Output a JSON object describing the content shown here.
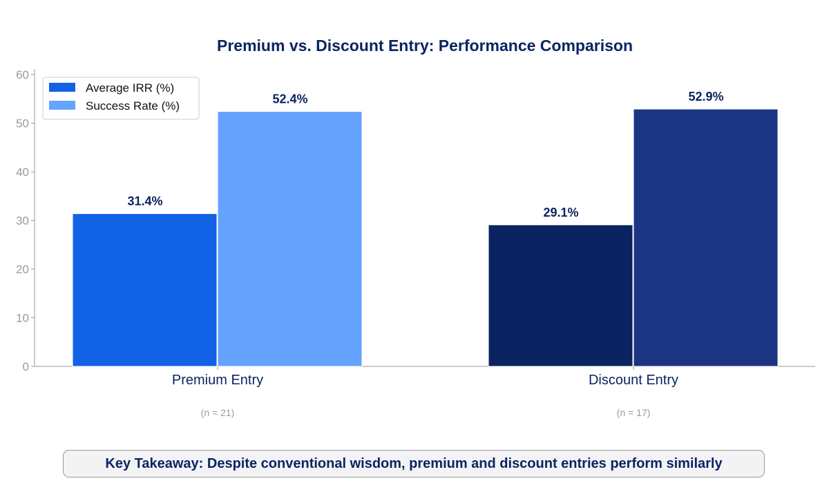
{
  "chart_data": {
    "type": "bar",
    "title": "Premium vs. Discount Entry: Performance Comparison",
    "categories": [
      "Premium Entry",
      "Discount Entry"
    ],
    "category_notes": [
      "(n = 21)",
      "(n = 17)"
    ],
    "series": [
      {
        "name": "Average IRR (%)",
        "values": [
          31.4,
          29.1
        ],
        "labels": [
          "31.4%",
          "29.1%"
        ]
      },
      {
        "name": "Success Rate (%)",
        "values": [
          52.4,
          52.9
        ],
        "labels": [
          "52.4%",
          "52.9%"
        ]
      }
    ],
    "bar_colors": [
      [
        "#1262e6",
        "#66a3ff"
      ],
      [
        "#0b2461",
        "#1b3582"
      ]
    ],
    "legend_colors": [
      "#1262e6",
      "#66a3ff"
    ],
    "ylim": [
      0,
      60
    ],
    "yticks": [
      0,
      10,
      20,
      30,
      40,
      50,
      60
    ],
    "xlabel": "",
    "ylabel": "",
    "grid": false,
    "legend": "top-left"
  },
  "takeaway": "Key Takeaway: Despite conventional wisdom, premium and discount entries perform similarly"
}
